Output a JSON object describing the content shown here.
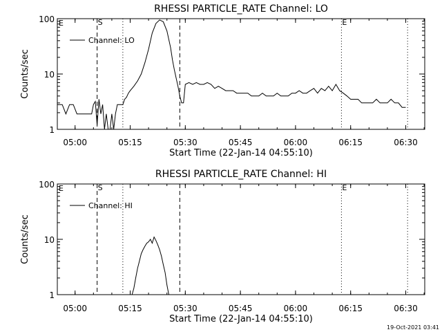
{
  "footer_date": "19-Oct-2021 03:41",
  "chart_data": [
    {
      "type": "line",
      "title": "RHESSI PARTICLE_RATE Channel: LO",
      "xlabel": "Start Time (22-Jan-14 04:55:10)",
      "ylabel": "Counts/sec",
      "yscale": "log",
      "xlim": [
        "04:55:10",
        "06:35:10"
      ],
      "ylim": [
        1,
        100
      ],
      "x_tick_labels": [
        "05:00",
        "05:15",
        "05:30",
        "05:45",
        "06:00",
        "06:15",
        "06:30"
      ],
      "y_tick_labels": [
        "1",
        "10",
        "100"
      ],
      "legend": {
        "entry": "Channel: LO",
        "placement": "top-left"
      },
      "markers": [
        {
          "time": "05:06:00",
          "style": "dashed",
          "label": "S"
        },
        {
          "time": "05:13:00",
          "style": "dotted",
          "label": ""
        },
        {
          "time": "05:28:30",
          "style": "dashed",
          "label": ""
        },
        {
          "time": "06:12:30",
          "style": "dotted",
          "label": "E"
        },
        {
          "time": "06:30:30",
          "style": "dotted",
          "label": ""
        }
      ],
      "corner_label": "E",
      "series": [
        {
          "name": "Channel: LO",
          "x": [
            "04:55:10",
            "04:56:30",
            "04:57:30",
            "04:58:30",
            "04:59:30",
            "05:00:30",
            "05:01:30",
            "05:03:00",
            "05:04:30",
            "05:05:00",
            "05:05:30",
            "05:06:00",
            "05:06:30",
            "05:07:00",
            "05:07:30",
            "05:08:00",
            "05:08:30",
            "05:09:00",
            "05:09:30",
            "05:10:00",
            "05:10:30",
            "05:11:00",
            "05:11:30",
            "05:12:00",
            "05:12:30",
            "05:13:00",
            "05:13:30",
            "05:14:00",
            "05:14:30",
            "05:15:00",
            "05:16:00",
            "05:17:00",
            "05:18:00",
            "05:19:00",
            "05:20:00",
            "05:21:00",
            "05:22:00",
            "05:23:00",
            "05:24:00",
            "05:25:00",
            "05:26:00",
            "05:26:30",
            "05:27:00",
            "05:27:30",
            "05:28:00",
            "05:28:30",
            "05:29:00",
            "05:29:30",
            "05:30:00",
            "05:31:00",
            "05:32:00",
            "05:33:00",
            "05:34:00",
            "05:35:00",
            "05:36:00",
            "05:37:00",
            "05:38:00",
            "05:39:00",
            "05:40:00",
            "05:41:00",
            "05:42:00",
            "05:43:00",
            "05:44:00",
            "05:45:00",
            "05:46:00",
            "05:47:00",
            "05:48:00",
            "05:49:00",
            "05:50:00",
            "05:51:00",
            "05:52:00",
            "05:53:00",
            "05:54:00",
            "05:55:00",
            "05:56:00",
            "05:57:00",
            "05:58:00",
            "05:59:00",
            "06:00:00",
            "06:01:00",
            "06:02:00",
            "06:03:00",
            "06:04:00",
            "06:05:00",
            "06:06:00",
            "06:07:00",
            "06:08:00",
            "06:09:00",
            "06:10:00",
            "06:11:00",
            "06:12:00",
            "06:13:00",
            "06:14:00",
            "06:15:00",
            "06:16:00",
            "06:17:00",
            "06:18:00",
            "06:19:00",
            "06:20:00",
            "06:21:00",
            "06:22:00",
            "06:23:00",
            "06:24:00",
            "06:25:00",
            "06:26:00",
            "06:27:00",
            "06:28:00",
            "06:29:00",
            "06:30:00"
          ],
          "y": [
            2.8,
            2.8,
            1.9,
            2.8,
            2.8,
            1.9,
            1.9,
            1.9,
            1.9,
            2.8,
            3.2,
            1.2,
            3.5,
            1.9,
            2.8,
            1.0,
            1.9,
            1.0,
            1.0,
            1.9,
            1.0,
            1.9,
            2.8,
            2.8,
            2.8,
            2.8,
            3.5,
            3.8,
            4.5,
            5.0,
            6.0,
            7.5,
            10.0,
            16.0,
            28.0,
            55.0,
            82.0,
            95.0,
            88.0,
            60.0,
            30.0,
            18.0,
            12.0,
            8.5,
            6.0,
            4.0,
            3.0,
            3.0,
            6.5,
            7.0,
            6.5,
            7.0,
            6.5,
            6.5,
            7.0,
            6.5,
            5.5,
            6.0,
            5.5,
            5.0,
            5.0,
            5.0,
            4.5,
            4.5,
            4.5,
            4.5,
            4.0,
            4.0,
            4.0,
            4.5,
            4.0,
            4.0,
            4.0,
            4.5,
            4.0,
            4.0,
            4.0,
            4.5,
            4.5,
            5.0,
            4.5,
            4.5,
            5.0,
            5.5,
            4.5,
            5.5,
            5.0,
            6.0,
            5.0,
            6.5,
            5.0,
            4.5,
            4.0,
            3.5,
            3.5,
            3.5,
            3.0,
            3.0,
            3.0,
            3.0,
            3.5,
            3.0,
            3.0,
            3.0,
            3.5,
            3.0,
            3.0,
            2.5,
            2.5
          ]
        }
      ]
    },
    {
      "type": "line",
      "title": "RHESSI PARTICLE_RATE Channel: HI",
      "xlabel": "Start Time (22-Jan-14 04:55:10)",
      "ylabel": "Counts/sec",
      "yscale": "log",
      "xlim": [
        "04:55:10",
        "06:35:10"
      ],
      "ylim": [
        1,
        100
      ],
      "x_tick_labels": [
        "05:00",
        "05:15",
        "05:30",
        "05:45",
        "06:00",
        "06:15",
        "06:30"
      ],
      "y_tick_labels": [
        "1",
        "10",
        "100"
      ],
      "legend": {
        "entry": "Channel: HI",
        "placement": "top-left"
      },
      "markers": [
        {
          "time": "05:06:00",
          "style": "dashed",
          "label": "S"
        },
        {
          "time": "05:13:00",
          "style": "dotted",
          "label": ""
        },
        {
          "time": "05:28:30",
          "style": "dashed",
          "label": ""
        },
        {
          "time": "06:12:30",
          "style": "dotted",
          "label": "E"
        },
        {
          "time": "06:30:30",
          "style": "dotted",
          "label": ""
        }
      ],
      "corner_label": "E",
      "series": [
        {
          "name": "Channel: HI",
          "x": [
            "05:15:30",
            "05:16:00",
            "05:16:30",
            "05:17:00",
            "05:17:30",
            "05:18:00",
            "05:18:30",
            "05:19:00",
            "05:19:30",
            "05:20:00",
            "05:20:30",
            "05:21:00",
            "05:21:30",
            "05:22:00",
            "05:22:30",
            "05:23:00",
            "05:23:30",
            "05:24:00",
            "05:24:30",
            "05:25:00",
            "05:25:30"
          ],
          "y": [
            1.0,
            1.3,
            2.0,
            3.0,
            4.0,
            5.5,
            6.5,
            7.5,
            8.5,
            9.0,
            10.0,
            8.5,
            11.0,
            9.5,
            8.0,
            6.5,
            5.0,
            3.5,
            2.5,
            1.5,
            1.0
          ]
        }
      ]
    }
  ]
}
